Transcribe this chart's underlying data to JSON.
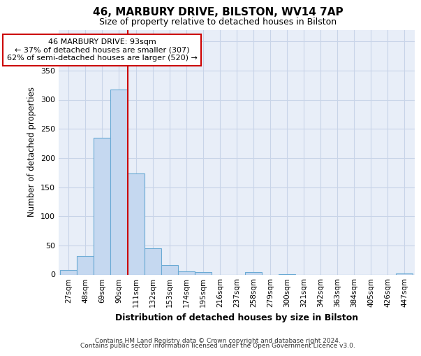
{
  "title1": "46, MARBURY DRIVE, BILSTON, WV14 7AP",
  "title2": "Size of property relative to detached houses in Bilston",
  "xlabel": "Distribution of detached houses by size in Bilston",
  "ylabel": "Number of detached properties",
  "footer1": "Contains HM Land Registry data © Crown copyright and database right 2024.",
  "footer2": "Contains public sector information licensed under the Open Government Licence v3.0.",
  "bin_labels": [
    "27sqm",
    "48sqm",
    "69sqm",
    "90sqm",
    "111sqm",
    "132sqm",
    "153sqm",
    "174sqm",
    "195sqm",
    "216sqm",
    "237sqm",
    "258sqm",
    "279sqm",
    "300sqm",
    "321sqm",
    "342sqm",
    "363sqm",
    "384sqm",
    "405sqm",
    "426sqm",
    "447sqm"
  ],
  "bar_values": [
    8,
    32,
    235,
    318,
    174,
    45,
    16,
    5,
    4,
    0,
    0,
    4,
    0,
    1,
    0,
    0,
    0,
    0,
    0,
    0,
    2
  ],
  "bar_color": "#c5d8f0",
  "bar_edgecolor": "#6aaad4",
  "grid_color": "#c8d4e8",
  "bg_color": "#e8eef8",
  "vline_x": 3.5,
  "vline_color": "#cc0000",
  "annotation_line1": "46 MARBURY DRIVE: 93sqm",
  "annotation_line2": "← 37% of detached houses are smaller (307)",
  "annotation_line3": "62% of semi-detached houses are larger (520) →",
  "annotation_box_color": "#ffffff",
  "annotation_box_edgecolor": "#cc0000",
  "ylim": [
    0,
    420
  ],
  "yticks": [
    0,
    50,
    100,
    150,
    200,
    250,
    300,
    350,
    400
  ],
  "bin_width": 1
}
